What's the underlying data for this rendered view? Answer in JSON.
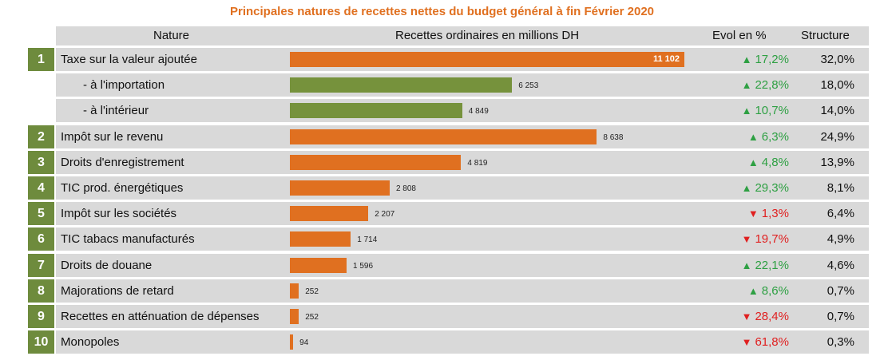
{
  "title": "Principales natures de recettes nettes du budget général à fin Février 2020",
  "header": {
    "col_nature": "Nature",
    "col_recettes": "Recettes ordinaires en millions DH",
    "col_evol": "Evol en %",
    "col_structure": "Structure"
  },
  "colors": {
    "orange": "#E07020",
    "green_bar": "#76923C",
    "number_badge": "#6E8B3D",
    "up": "#2EA043",
    "down": "#E02020"
  },
  "chart_data": {
    "type": "bar",
    "orientation": "horizontal",
    "rows": [
      {
        "num": "1",
        "label": "Taxe sur la valeur ajoutée",
        "value": 11102,
        "display": "11 102",
        "color": "orange",
        "sub": false,
        "dir": "up",
        "evol": "17,2%",
        "structure": "32,0%"
      },
      {
        "num": "",
        "label": "- à l'importation",
        "value": 6253,
        "display": "6 253",
        "color": "green",
        "sub": true,
        "dir": "up",
        "evol": "22,8%",
        "structure": "18,0%"
      },
      {
        "num": "",
        "label": "- à l'intérieur",
        "value": 4849,
        "display": "4 849",
        "color": "green",
        "sub": true,
        "dir": "up",
        "evol": "10,7%",
        "structure": "14,0%"
      },
      {
        "num": "2",
        "label": "Impôt sur le revenu",
        "value": 8638,
        "display": "8 638",
        "color": "orange",
        "sub": false,
        "dir": "up",
        "evol": "6,3%",
        "structure": "24,9%"
      },
      {
        "num": "3",
        "label": "Droits d'enregistrement",
        "value": 4819,
        "display": "4 819",
        "color": "orange",
        "sub": false,
        "dir": "up",
        "evol": "4,8%",
        "structure": "13,9%"
      },
      {
        "num": "4",
        "label": "TIC prod. énergétiques",
        "value": 2808,
        "display": "2 808",
        "color": "orange",
        "sub": false,
        "dir": "up",
        "evol": "29,3%",
        "structure": "8,1%"
      },
      {
        "num": "5",
        "label": "Impôt sur les sociétés",
        "value": 2207,
        "display": "2 207",
        "color": "orange",
        "sub": false,
        "dir": "down",
        "evol": "1,3%",
        "structure": "6,4%"
      },
      {
        "num": "6",
        "label": "TIC tabacs manufacturés",
        "value": 1714,
        "display": "1 714",
        "color": "orange",
        "sub": false,
        "dir": "down",
        "evol": "19,7%",
        "structure": "4,9%"
      },
      {
        "num": "7",
        "label": "Droits de douane",
        "value": 1596,
        "display": "1 596",
        "color": "orange",
        "sub": false,
        "dir": "up",
        "evol": "22,1%",
        "structure": "4,6%"
      },
      {
        "num": "8",
        "label": "Majorations de retard",
        "value": 252,
        "display": "252",
        "color": "orange",
        "sub": false,
        "dir": "up",
        "evol": "8,6%",
        "structure": "0,7%"
      },
      {
        "num": "9",
        "label": "Recettes en atténuation de dépenses",
        "value": 252,
        "display": "252",
        "color": "orange",
        "sub": false,
        "dir": "down",
        "evol": "28,4%",
        "structure": "0,7%"
      },
      {
        "num": "10",
        "label": "Monopoles",
        "value": 94,
        "display": "94",
        "color": "orange",
        "sub": false,
        "dir": "down",
        "evol": "61,8%",
        "structure": "0,3%"
      }
    ]
  }
}
